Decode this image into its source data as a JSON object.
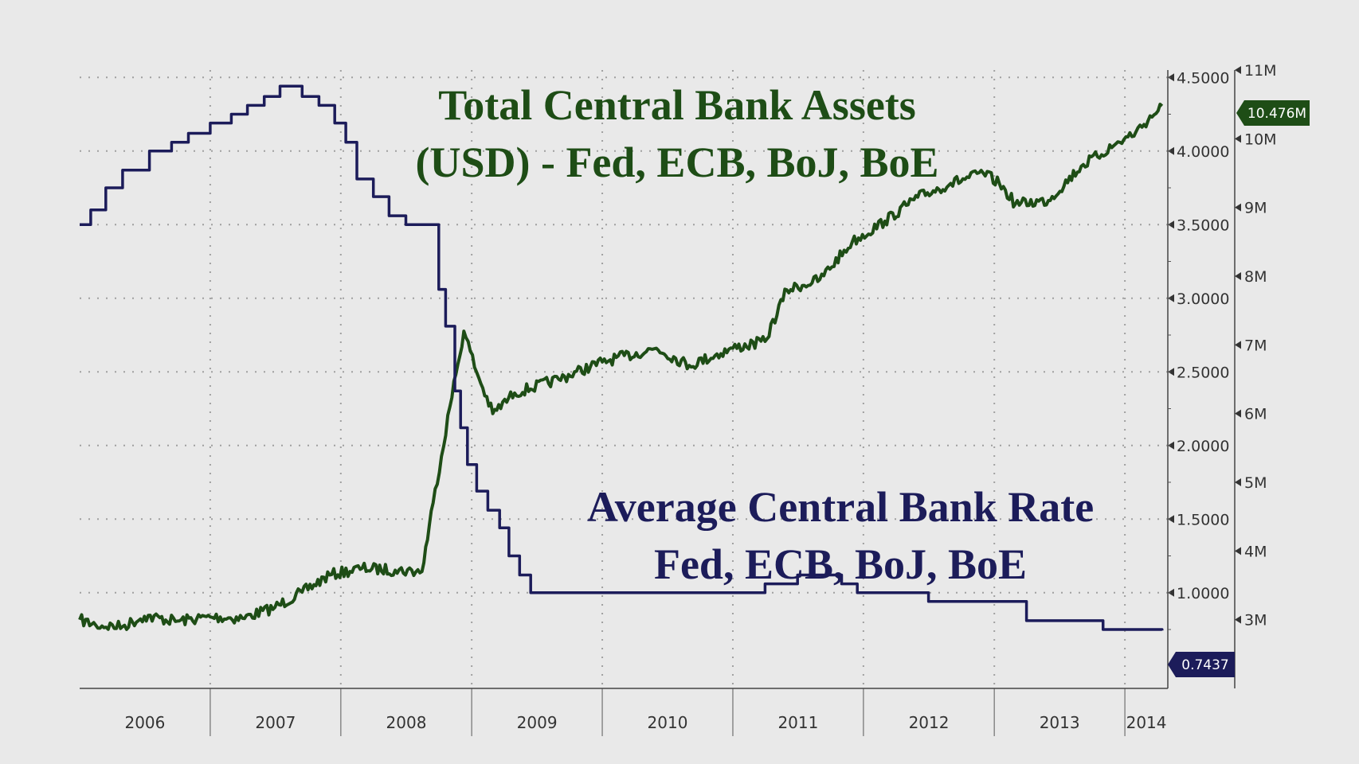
{
  "chart_data": {
    "type": "line",
    "x_type": "date",
    "x_range": [
      "2006-01-01",
      "2014-05-01"
    ],
    "x_tick_labels": [
      "2006",
      "2007",
      "2008",
      "2009",
      "2010",
      "2011",
      "2012",
      "2013",
      "2014"
    ],
    "y_left_scale_note": "",
    "grid": true,
    "series": [
      {
        "name": "Total Central Bank Assets (USD) - Fed, ECB, BoJ, BoE",
        "axis": "right",
        "color": "#1e4d16",
        "points": [
          [
            "2006-01-01",
            3.0
          ],
          [
            "2006-02-15",
            2.92
          ],
          [
            "2006-05-01",
            2.9
          ],
          [
            "2006-07-01",
            3.05
          ],
          [
            "2006-10-01",
            2.98
          ],
          [
            "2007-01-01",
            3.04
          ],
          [
            "2007-04-01",
            3.02
          ],
          [
            "2007-07-01",
            3.18
          ],
          [
            "2007-09-15",
            3.4
          ],
          [
            "2007-12-01",
            3.65
          ],
          [
            "2008-03-01",
            3.75
          ],
          [
            "2008-06-01",
            3.72
          ],
          [
            "2008-08-15",
            3.7
          ],
          [
            "2008-09-15",
            4.7
          ],
          [
            "2008-11-01",
            6.1
          ],
          [
            "2008-12-10",
            7.2
          ],
          [
            "2009-01-15",
            6.6
          ],
          [
            "2009-03-01",
            6.0
          ],
          [
            "2009-05-01",
            6.3
          ],
          [
            "2009-09-01",
            6.5
          ],
          [
            "2010-01-01",
            6.75
          ],
          [
            "2010-06-01",
            6.95
          ],
          [
            "2010-09-01",
            6.7
          ],
          [
            "2011-01-01",
            6.95
          ],
          [
            "2011-04-01",
            7.05
          ],
          [
            "2011-06-01",
            7.8
          ],
          [
            "2011-09-01",
            7.95
          ],
          [
            "2011-12-01",
            8.5
          ],
          [
            "2012-03-01",
            8.8
          ],
          [
            "2012-06-01",
            9.15
          ],
          [
            "2012-09-01",
            9.35
          ],
          [
            "2012-12-01",
            9.5
          ],
          [
            "2013-01-15",
            9.35
          ],
          [
            "2013-03-01",
            9.05
          ],
          [
            "2013-06-01",
            9.1
          ],
          [
            "2013-09-01",
            9.6
          ],
          [
            "2013-12-01",
            9.9
          ],
          [
            "2014-02-01",
            10.1
          ],
          [
            "2014-04-15",
            10.476
          ]
        ]
      },
      {
        "name": "Average Central Bank Rate Fed, ECB, BoJ, BoE",
        "axis": "left",
        "color": "#1c1c5a",
        "step": true,
        "points": [
          [
            "2006-01-01",
            3.5
          ],
          [
            "2006-02-01",
            3.6
          ],
          [
            "2006-03-15",
            3.75
          ],
          [
            "2006-05-01",
            3.87
          ],
          [
            "2006-07-15",
            4.0
          ],
          [
            "2006-09-15",
            4.06
          ],
          [
            "2006-11-01",
            4.12
          ],
          [
            "2007-01-01",
            4.19
          ],
          [
            "2007-03-01",
            4.25
          ],
          [
            "2007-04-15",
            4.31
          ],
          [
            "2007-06-01",
            4.37
          ],
          [
            "2007-07-15",
            4.44
          ],
          [
            "2007-09-15",
            4.37
          ],
          [
            "2007-11-01",
            4.31
          ],
          [
            "2007-12-15",
            4.19
          ],
          [
            "2008-01-15",
            4.06
          ],
          [
            "2008-02-15",
            3.81
          ],
          [
            "2008-04-01",
            3.69
          ],
          [
            "2008-05-15",
            3.56
          ],
          [
            "2008-07-01",
            3.5
          ],
          [
            "2008-08-01",
            3.5
          ],
          [
            "2008-10-01",
            3.06
          ],
          [
            "2008-10-20",
            2.81
          ],
          [
            "2008-11-15",
            2.37
          ],
          [
            "2008-12-01",
            2.12
          ],
          [
            "2008-12-20",
            1.87
          ],
          [
            "2009-01-15",
            1.69
          ],
          [
            "2009-02-15",
            1.56
          ],
          [
            "2009-03-20",
            1.44
          ],
          [
            "2009-04-15",
            1.25
          ],
          [
            "2009-05-15",
            1.12
          ],
          [
            "2009-06-15",
            1.0
          ],
          [
            "2011-04-01",
            1.06
          ],
          [
            "2011-07-01",
            1.12
          ],
          [
            "2011-11-01",
            1.06
          ],
          [
            "2011-12-15",
            1.0
          ],
          [
            "2012-07-01",
            0.94
          ],
          [
            "2013-04-01",
            0.81
          ],
          [
            "2013-11-01",
            0.75
          ],
          [
            "2014-04-15",
            0.7437
          ]
        ]
      }
    ],
    "y_left": {
      "ylim": [
        0.35,
        4.55
      ],
      "ticks": [
        "4.5000",
        "4.0000",
        "3.5000",
        "3.0000",
        "2.5000",
        "2.0000",
        "1.5000",
        "1.0000"
      ]
    },
    "y_right": {
      "ylim": [
        2.0,
        11.0
      ],
      "ticks": [
        "11M",
        "10M",
        "9M",
        "8M",
        "7M",
        "6M",
        "5M",
        "4M",
        "3M"
      ]
    },
    "end_labels": {
      "assets": "10.476M",
      "rate": "0.7437"
    },
    "annotations": {
      "assets_title_line1": "Total Central Bank Assets",
      "assets_title_line2": "(USD) - Fed, ECB, BoJ, BoE",
      "rate_title_line1": "Average Central Bank Rate",
      "rate_title_line2": "Fed, ECB, BoJ, BoE"
    },
    "colors": {
      "background": "#e9e9e9",
      "assets": "#1e4d16",
      "rate": "#1c1c5a",
      "grid": "#a0a0a0",
      "axis": "#444444"
    }
  }
}
